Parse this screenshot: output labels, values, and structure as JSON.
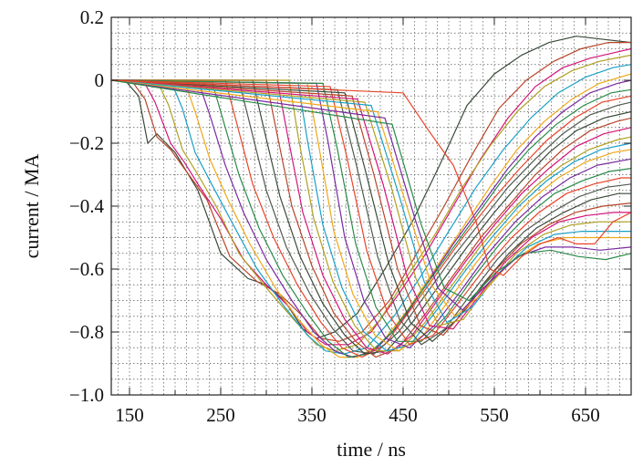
{
  "chart_data": {
    "type": "line",
    "title": "",
    "xlabel": "time / ns",
    "ylabel": "current / MA",
    "xlim": [
      130,
      700
    ],
    "ylim": [
      -1.0,
      0.2
    ],
    "x_ticks": [
      150,
      250,
      350,
      450,
      550,
      650
    ],
    "y_ticks": [
      0.2,
      0,
      -0.2,
      -0.4,
      -0.6,
      -0.8,
      -1.0
    ],
    "x_tick_labels": [
      "150",
      "250",
      "350",
      "450",
      "550",
      "650"
    ],
    "y_tick_labels": [
      "0.2",
      "0",
      "−0.2",
      "−0.4",
      "−0.6",
      "−0.8",
      "−1.0"
    ],
    "x_minor_step": 12.5,
    "y_minor_step": 0.05,
    "grid": true,
    "legend": "none",
    "colors": [
      "#3a4a3a",
      "#b8452a",
      "#d4147a",
      "#b0a020",
      "#1ba0c8",
      "#f0a818",
      "#7a2aa0",
      "#2a8a4a",
      "#e8442a",
      "#505a50"
    ],
    "series": [
      {
        "x": [
          130,
          145,
          160,
          170,
          180,
          190,
          200,
          225,
          250,
          280,
          300,
          320,
          340,
          355,
          375,
          400,
          430,
          460,
          490,
          520,
          550,
          580,
          610,
          640,
          670,
          700
        ],
        "y": [
          0,
          0,
          -0.05,
          -0.2,
          -0.17,
          -0.2,
          -0.23,
          -0.35,
          -0.55,
          -0.63,
          -0.65,
          -0.7,
          -0.79,
          -0.82,
          -0.8,
          -0.74,
          -0.6,
          -0.45,
          -0.27,
          -0.08,
          0.02,
          0.08,
          0.12,
          0.14,
          0.13,
          0.12
        ]
      },
      {
        "x": [
          130,
          152,
          167,
          180,
          195,
          210,
          235,
          260,
          290,
          315,
          340,
          360,
          380,
          405,
          435,
          465,
          495,
          525,
          555,
          585,
          615,
          645,
          675,
          700
        ],
        "y": [
          0,
          0,
          -0.06,
          -0.18,
          -0.22,
          -0.28,
          -0.38,
          -0.56,
          -0.64,
          -0.68,
          -0.75,
          -0.82,
          -0.83,
          -0.8,
          -0.7,
          -0.55,
          -0.4,
          -0.24,
          -0.09,
          0.0,
          0.06,
          0.1,
          0.12,
          0.12
        ]
      },
      {
        "x": [
          130,
          165,
          178,
          195,
          210,
          225,
          250,
          275,
          300,
          325,
          345,
          365,
          390,
          415,
          445,
          475,
          505,
          535,
          565,
          595,
          625,
          655,
          685,
          700
        ],
        "y": [
          0,
          0,
          -0.07,
          -0.2,
          -0.26,
          -0.33,
          -0.44,
          -0.57,
          -0.65,
          -0.72,
          -0.8,
          -0.84,
          -0.84,
          -0.8,
          -0.68,
          -0.55,
          -0.4,
          -0.25,
          -0.12,
          -0.02,
          0.04,
          0.07,
          0.09,
          0.1
        ]
      },
      {
        "x": [
          130,
          180,
          193,
          208,
          225,
          245,
          270,
          300,
          330,
          355,
          375,
          400,
          425,
          455,
          485,
          515,
          545,
          575,
          605,
          635,
          665,
          700
        ],
        "y": [
          0,
          0,
          -0.08,
          -0.22,
          -0.3,
          -0.4,
          -0.55,
          -0.66,
          -0.76,
          -0.84,
          -0.86,
          -0.84,
          -0.76,
          -0.62,
          -0.49,
          -0.34,
          -0.21,
          -0.1,
          -0.02,
          0.03,
          0.06,
          0.08
        ]
      },
      {
        "x": [
          130,
          195,
          208,
          222,
          240,
          262,
          290,
          320,
          345,
          365,
          385,
          410,
          440,
          470,
          500,
          530,
          560,
          590,
          620,
          650,
          680,
          700
        ],
        "y": [
          0,
          0,
          -0.09,
          -0.23,
          -0.33,
          -0.45,
          -0.6,
          -0.72,
          -0.81,
          -0.86,
          -0.87,
          -0.85,
          -0.75,
          -0.62,
          -0.48,
          -0.34,
          -0.22,
          -0.12,
          -0.04,
          0.01,
          0.04,
          0.05
        ]
      },
      {
        "x": [
          130,
          210,
          222,
          238,
          258,
          282,
          310,
          335,
          360,
          380,
          400,
          425,
          455,
          485,
          515,
          545,
          575,
          605,
          635,
          665,
          700
        ],
        "y": [
          0,
          0,
          -0.1,
          -0.25,
          -0.38,
          -0.52,
          -0.66,
          -0.76,
          -0.84,
          -0.88,
          -0.88,
          -0.84,
          -0.73,
          -0.6,
          -0.47,
          -0.34,
          -0.22,
          -0.13,
          -0.06,
          -0.01,
          0.02
        ]
      },
      {
        "x": [
          130,
          225,
          238,
          255,
          275,
          300,
          328,
          352,
          375,
          395,
          418,
          445,
          475,
          505,
          535,
          565,
          595,
          625,
          655,
          685,
          700
        ],
        "y": [
          0,
          0,
          -0.11,
          -0.27,
          -0.42,
          -0.57,
          -0.7,
          -0.8,
          -0.86,
          -0.88,
          -0.86,
          -0.78,
          -0.65,
          -0.52,
          -0.4,
          -0.28,
          -0.18,
          -0.1,
          -0.04,
          -0.01,
          0.0
        ]
      },
      {
        "x": [
          130,
          240,
          252,
          270,
          292,
          318,
          345,
          368,
          390,
          412,
          438,
          468,
          498,
          528,
          558,
          588,
          618,
          648,
          678,
          700
        ],
        "y": [
          0,
          0,
          -0.12,
          -0.3,
          -0.47,
          -0.62,
          -0.74,
          -0.83,
          -0.88,
          -0.87,
          -0.8,
          -0.68,
          -0.56,
          -0.44,
          -0.32,
          -0.22,
          -0.14,
          -0.08,
          -0.04,
          -0.03
        ]
      },
      {
        "x": [
          130,
          255,
          267,
          285,
          308,
          334,
          360,
          383,
          405,
          430,
          458,
          488,
          518,
          548,
          578,
          608,
          638,
          668,
          700
        ],
        "y": [
          0,
          0,
          -0.13,
          -0.33,
          -0.5,
          -0.65,
          -0.77,
          -0.85,
          -0.88,
          -0.84,
          -0.73,
          -0.61,
          -0.49,
          -0.38,
          -0.28,
          -0.19,
          -0.12,
          -0.07,
          -0.05
        ]
      },
      {
        "x": [
          130,
          270,
          282,
          300,
          322,
          348,
          373,
          395,
          418,
          445,
          475,
          505,
          535,
          565,
          595,
          625,
          655,
          685,
          700
        ],
        "y": [
          0,
          0,
          -0.14,
          -0.35,
          -0.53,
          -0.68,
          -0.79,
          -0.86,
          -0.87,
          -0.8,
          -0.68,
          -0.56,
          -0.45,
          -0.34,
          -0.25,
          -0.17,
          -0.11,
          -0.08,
          -0.07
        ]
      },
      {
        "x": [
          130,
          285,
          297,
          315,
          337,
          362,
          386,
          408,
          432,
          460,
          490,
          520,
          550,
          580,
          610,
          640,
          670,
          700
        ],
        "y": [
          0,
          0,
          -0.15,
          -0.37,
          -0.56,
          -0.71,
          -0.81,
          -0.87,
          -0.86,
          -0.77,
          -0.65,
          -0.53,
          -0.42,
          -0.32,
          -0.23,
          -0.16,
          -0.12,
          -0.1
        ]
      },
      {
        "x": [
          130,
          300,
          311,
          328,
          350,
          374,
          398,
          420,
          445,
          475,
          505,
          535,
          565,
          595,
          625,
          655,
          685,
          700
        ],
        "y": [
          0,
          0,
          -0.16,
          -0.4,
          -0.59,
          -0.74,
          -0.83,
          -0.88,
          -0.85,
          -0.74,
          -0.62,
          -0.5,
          -0.4,
          -0.3,
          -0.22,
          -0.16,
          -0.13,
          -0.12
        ]
      },
      {
        "x": [
          130,
          312,
          323,
          340,
          362,
          386,
          410,
          433,
          460,
          490,
          520,
          550,
          580,
          610,
          640,
          670,
          700
        ],
        "y": [
          0,
          0,
          -0.17,
          -0.42,
          -0.62,
          -0.76,
          -0.85,
          -0.87,
          -0.81,
          -0.69,
          -0.57,
          -0.46,
          -0.36,
          -0.28,
          -0.21,
          -0.17,
          -0.15
        ]
      },
      {
        "x": [
          130,
          325,
          335,
          352,
          373,
          397,
          421,
          446,
          474,
          504,
          534,
          564,
          594,
          624,
          654,
          684,
          700
        ],
        "y": [
          0,
          0,
          -0.18,
          -0.44,
          -0.64,
          -0.78,
          -0.86,
          -0.86,
          -0.77,
          -0.65,
          -0.53,
          -0.43,
          -0.34,
          -0.27,
          -0.22,
          -0.19,
          -0.18
        ]
      },
      {
        "x": [
          130,
          335,
          345,
          362,
          383,
          407,
          432,
          458,
          487,
          517,
          547,
          577,
          607,
          637,
          667,
          700
        ],
        "y": [
          0,
          -0.01,
          -0.19,
          -0.46,
          -0.66,
          -0.8,
          -0.86,
          -0.84,
          -0.73,
          -0.61,
          -0.5,
          -0.4,
          -0.32,
          -0.26,
          -0.22,
          -0.2
        ]
      },
      {
        "x": [
          130,
          345,
          357,
          374,
          395,
          419,
          445,
          472,
          500,
          530,
          560,
          590,
          620,
          650,
          680,
          700
        ],
        "y": [
          0,
          -0.01,
          -0.2,
          -0.48,
          -0.68,
          -0.81,
          -0.86,
          -0.81,
          -0.7,
          -0.58,
          -0.47,
          -0.38,
          -0.31,
          -0.26,
          -0.23,
          -0.22
        ]
      },
      {
        "x": [
          130,
          355,
          368,
          386,
          407,
          431,
          457,
          484,
          513,
          543,
          573,
          603,
          633,
          663,
          700
        ],
        "y": [
          0,
          -0.01,
          -0.2,
          -0.5,
          -0.7,
          -0.82,
          -0.85,
          -0.78,
          -0.67,
          -0.55,
          -0.45,
          -0.37,
          -0.31,
          -0.27,
          -0.25
        ]
      },
      {
        "x": [
          130,
          362,
          378,
          398,
          420,
          444,
          470,
          497,
          526,
          556,
          586,
          616,
          646,
          676,
          700
        ],
        "y": [
          0,
          -0.01,
          -0.22,
          -0.52,
          -0.72,
          -0.83,
          -0.83,
          -0.75,
          -0.63,
          -0.52,
          -0.43,
          -0.36,
          -0.32,
          -0.29,
          -0.28
        ]
      },
      {
        "x": [
          130,
          370,
          388,
          410,
          433,
          457,
          483,
          510,
          539,
          569,
          599,
          629,
          659,
          689,
          700
        ],
        "y": [
          0,
          -0.02,
          -0.24,
          -0.54,
          -0.74,
          -0.84,
          -0.81,
          -0.71,
          -0.6,
          -0.5,
          -0.42,
          -0.36,
          -0.33,
          -0.31,
          -0.31
        ]
      },
      {
        "x": [
          130,
          378,
          398,
          422,
          446,
          470,
          496,
          524,
          553,
          583,
          613,
          643,
          673,
          700
        ],
        "y": [
          0,
          -0.03,
          -0.26,
          -0.56,
          -0.76,
          -0.84,
          -0.79,
          -0.68,
          -0.57,
          -0.48,
          -0.42,
          -0.37,
          -0.34,
          -0.33
        ]
      },
      {
        "x": [
          130,
          386,
          408,
          434,
          458,
          482,
          509,
          537,
          566,
          596,
          626,
          656,
          686,
          700
        ],
        "y": [
          0,
          -0.04,
          -0.28,
          -0.58,
          -0.77,
          -0.83,
          -0.76,
          -0.65,
          -0.55,
          -0.47,
          -0.42,
          -0.38,
          -0.36,
          -0.36
        ]
      },
      {
        "x": [
          130,
          394,
          418,
          444,
          469,
          494,
          521,
          549,
          579,
          609,
          639,
          669,
          700
        ],
        "y": [
          0,
          -0.05,
          -0.3,
          -0.6,
          -0.78,
          -0.81,
          -0.72,
          -0.61,
          -0.52,
          -0.46,
          -0.42,
          -0.4,
          -0.39
        ]
      },
      {
        "x": [
          130,
          400,
          428,
          454,
          479,
          505,
          532,
          561,
          591,
          621,
          651,
          681,
          700
        ],
        "y": [
          0,
          -0.06,
          -0.33,
          -0.62,
          -0.78,
          -0.79,
          -0.69,
          -0.58,
          -0.5,
          -0.45,
          -0.43,
          -0.42,
          -0.42
        ]
      },
      {
        "x": [
          130,
          408,
          438,
          464,
          489,
          516,
          544,
          574,
          604,
          634,
          664,
          694,
          700
        ],
        "y": [
          0,
          -0.07,
          -0.35,
          -0.63,
          -0.78,
          -0.76,
          -0.65,
          -0.55,
          -0.49,
          -0.46,
          -0.45,
          -0.45,
          -0.45
        ]
      },
      {
        "x": [
          130,
          415,
          447,
          473,
          498,
          526,
          556,
          586,
          616,
          646,
          676,
          700
        ],
        "y": [
          0,
          -0.08,
          -0.38,
          -0.64,
          -0.77,
          -0.72,
          -0.61,
          -0.53,
          -0.49,
          -0.48,
          -0.48,
          -0.48
        ]
      },
      {
        "x": [
          130,
          422,
          455,
          481,
          507,
          536,
          567,
          598,
          628,
          658,
          688,
          700
        ],
        "y": [
          0,
          -0.1,
          -0.41,
          -0.65,
          -0.75,
          -0.68,
          -0.58,
          -0.52,
          -0.5,
          -0.5,
          -0.5,
          -0.5
        ]
      },
      {
        "x": [
          130,
          430,
          463,
          488,
          515,
          545,
          576,
          606,
          636,
          666,
          700
        ],
        "y": [
          0,
          -0.12,
          -0.44,
          -0.66,
          -0.73,
          -0.64,
          -0.56,
          -0.53,
          -0.53,
          -0.54,
          -0.53
        ]
      },
      {
        "x": [
          130,
          438,
          470,
          495,
          522,
          552,
          582,
          612,
          642,
          672,
          700
        ],
        "y": [
          0,
          -0.14,
          -0.46,
          -0.66,
          -0.7,
          -0.61,
          -0.55,
          -0.54,
          -0.56,
          -0.57,
          -0.55
        ]
      },
      {
        "x": [
          130,
          450,
          478,
          505,
          530,
          545,
          560,
          580,
          600,
          620,
          640,
          660,
          680,
          700
        ],
        "y": [
          0,
          -0.04,
          -0.16,
          -0.27,
          -0.45,
          -0.6,
          -0.62,
          -0.56,
          -0.52,
          -0.5,
          -0.52,
          -0.52,
          -0.45,
          -0.42
        ]
      }
    ]
  }
}
